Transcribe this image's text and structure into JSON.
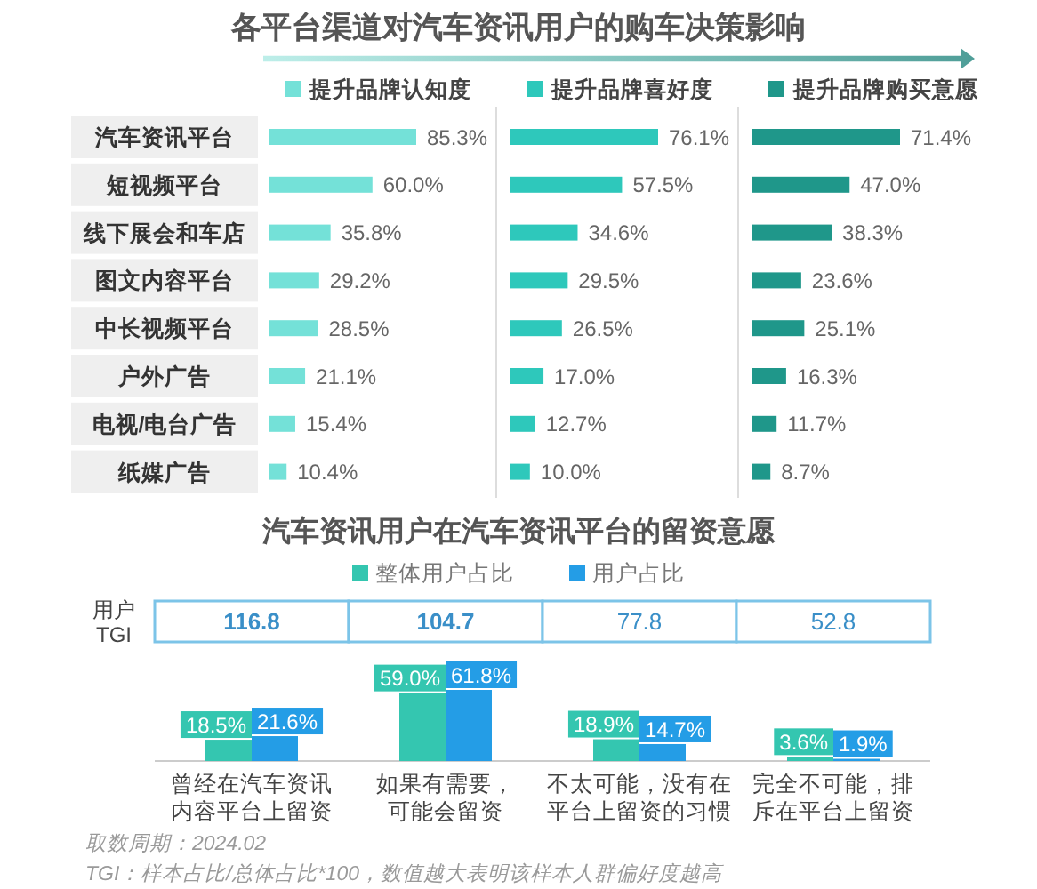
{
  "chart_data": [
    {
      "type": "bar",
      "orientation": "horizontal",
      "title": "各平台渠道对汽车资讯用户的购车决策影响",
      "legend": "top",
      "categories": [
        "汽车资讯平台",
        "短视频平台",
        "线下展会和车店",
        "图文内容平台",
        "中长视频平台",
        "户外广告",
        "电视/电台广告",
        "纸媒广告"
      ],
      "series": [
        {
          "name": "提升品牌认知度",
          "color": "#74e1d8",
          "values": [
            85.3,
            60.0,
            35.8,
            29.2,
            28.5,
            21.1,
            15.4,
            10.4
          ],
          "value_labels": [
            "85.3%",
            "60.0%",
            "35.8%",
            "29.2%",
            "28.5%",
            "21.1%",
            "15.4%",
            "10.4%"
          ]
        }
      ]
    },
    {
      "type": "bar",
      "orientation": "horizontal",
      "legend": "top",
      "tick_labels": false,
      "categories": [
        null,
        null,
        null,
        null,
        null,
        null,
        null,
        null
      ],
      "series": [
        {
          "name": "提升品牌喜好度",
          "color": "#2ec8bb",
          "values": [
            76.1,
            57.5,
            34.6,
            29.5,
            26.5,
            17.0,
            12.7,
            10.0
          ],
          "value_labels": [
            "76.1%",
            "57.5%",
            "34.6%",
            "29.5%",
            "26.5%",
            "17.0%",
            "12.7%",
            "10.0%"
          ]
        }
      ]
    },
    {
      "type": "bar",
      "orientation": "horizontal",
      "legend": "top",
      "tick_labels": false,
      "categories": [
        null,
        null,
        null,
        null,
        null,
        null,
        null,
        null
      ],
      "series": [
        {
          "name": "提升品牌购买意愿",
          "color": "#1f978a",
          "values": [
            71.4,
            47.0,
            38.3,
            23.6,
            25.1,
            16.3,
            11.7,
            8.7
          ],
          "value_labels": [
            "71.4%",
            "47.0%",
            "38.3%",
            "23.6%",
            "25.1%",
            "16.3%",
            "11.7%",
            "8.7%"
          ]
        }
      ]
    },
    {
      "type": "bar",
      "title": "汽车资讯用户在汽车资讯平台的留资意愿",
      "legend": "top",
      "categories": [
        "曾经在汽车资讯内容平台上留资",
        "如果有需要，可能会留资",
        "不太可能，没有在平台上留资的习惯",
        "完全不可能，排斥在平台上留资"
      ],
      "series": [
        {
          "name": "整体用户占比",
          "color": "#34c6b0",
          "values": [
            18.5,
            59.0,
            18.9,
            3.6
          ],
          "value_labels": [
            "18.5%",
            "59.0%",
            "18.9%",
            "3.6%"
          ]
        },
        {
          "name": "用户占比",
          "color": "#249de6",
          "values": [
            21.6,
            61.8,
            14.7,
            1.9
          ],
          "value_labels": [
            "21.6%",
            "61.8%",
            "14.7%",
            "1.9%"
          ]
        }
      ]
    },
    {
      "type": "other",
      "ylabel": "用户\nTGI",
      "color": "#3a8fc8",
      "values": [
        116.8,
        104.7,
        77.8,
        52.8
      ],
      "data_labels": true,
      "annotations": [
        "取数周期：2024.02",
        "TGI：样本占比/总体占比*100，数值越大表明该样本人群偏好度越高"
      ]
    }
  ]
}
